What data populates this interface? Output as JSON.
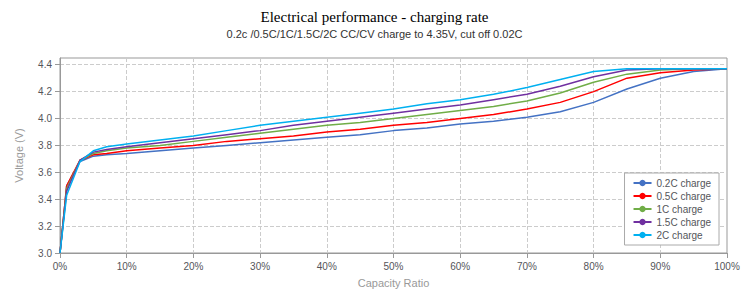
{
  "chart_data": {
    "type": "line",
    "title": "Electrical performance - charging rate",
    "subtitle": "0.2c /0.5C/1C/1.5C/2C CC/CV charge to 4.35V, cut off 0.02C",
    "xlabel": "Capacity Ratio",
    "ylabel": "Voltage (V)",
    "x": [
      0.0,
      0.01,
      0.03,
      0.05,
      0.07,
      0.1,
      0.15,
      0.2,
      0.25,
      0.3,
      0.35,
      0.4,
      0.45,
      0.5,
      0.55,
      0.6,
      0.65,
      0.7,
      0.75,
      0.8,
      0.85,
      0.9,
      0.95,
      1.0
    ],
    "xlim": [
      0.0,
      1.0
    ],
    "xticks": [
      {
        "value": 0,
        "label": "0%"
      },
      {
        "value": 0.1,
        "label": "10%"
      },
      {
        "value": 0.2,
        "label": "20%"
      },
      {
        "value": 0.3,
        "label": "30%"
      },
      {
        "value": 0.4,
        "label": "40%"
      },
      {
        "value": 0.5,
        "label": "50%"
      },
      {
        "value": 0.6,
        "label": "60%"
      },
      {
        "value": 0.7,
        "label": "70%"
      },
      {
        "value": 0.8,
        "label": "80%"
      },
      {
        "value": 0.9,
        "label": "90%"
      },
      {
        "value": 1.0,
        "label": "100%"
      }
    ],
    "ylim": [
      3.0,
      4.45
    ],
    "yticks": [
      {
        "value": 3.0,
        "label": "3.0"
      },
      {
        "value": 3.2,
        "label": "3.2"
      },
      {
        "value": 3.4,
        "label": "3.4"
      },
      {
        "value": 3.6,
        "label": "3.6"
      },
      {
        "value": 3.8,
        "label": "3.8"
      },
      {
        "value": 4.0,
        "label": "4.0"
      },
      {
        "value": 4.2,
        "label": "4.2"
      },
      {
        "value": 4.4,
        "label": "4.4"
      }
    ],
    "grid": true,
    "legend": "lower right",
    "series": [
      {
        "name": "0.2C charge",
        "color": "#4472C4",
        "values": [
          3.0,
          3.5,
          3.68,
          3.72,
          3.73,
          3.74,
          3.76,
          3.78,
          3.8,
          3.82,
          3.84,
          3.86,
          3.88,
          3.91,
          3.93,
          3.96,
          3.98,
          4.01,
          4.05,
          4.12,
          4.22,
          4.3,
          4.35,
          4.37
        ]
      },
      {
        "name": "0.5C charge",
        "color": "#FF0000",
        "values": [
          3.0,
          3.5,
          3.69,
          3.73,
          3.74,
          3.76,
          3.78,
          3.8,
          3.83,
          3.85,
          3.87,
          3.9,
          3.92,
          3.95,
          3.97,
          4.0,
          4.03,
          4.07,
          4.12,
          4.2,
          4.3,
          4.34,
          4.36,
          4.37
        ]
      },
      {
        "name": "1C charge",
        "color": "#70AD47",
        "values": [
          3.0,
          3.48,
          3.69,
          3.74,
          3.76,
          3.78,
          3.8,
          3.83,
          3.86,
          3.89,
          3.92,
          3.95,
          3.97,
          4.0,
          4.03,
          4.06,
          4.09,
          4.13,
          4.19,
          4.27,
          4.33,
          4.36,
          4.37,
          4.37
        ]
      },
      {
        "name": "1.5C charge",
        "color": "#7030A0",
        "values": [
          3.0,
          3.46,
          3.69,
          3.75,
          3.77,
          3.79,
          3.82,
          3.85,
          3.88,
          3.91,
          3.95,
          3.98,
          4.01,
          4.04,
          4.07,
          4.1,
          4.14,
          4.18,
          4.24,
          4.31,
          4.36,
          4.37,
          4.37,
          4.37
        ]
      },
      {
        "name": "2C charge",
        "color": "#00B0F0",
        "values": [
          3.0,
          3.43,
          3.68,
          3.76,
          3.79,
          3.81,
          3.84,
          3.87,
          3.91,
          3.95,
          3.98,
          4.01,
          4.04,
          4.07,
          4.11,
          4.14,
          4.18,
          4.23,
          4.29,
          4.35,
          4.37,
          4.37,
          4.37,
          4.37
        ]
      }
    ]
  }
}
